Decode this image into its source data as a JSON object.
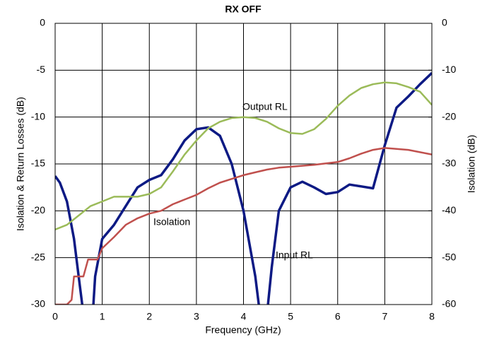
{
  "chart_data": {
    "type": "line",
    "title": "RX OFF",
    "xlabel": "Frequency (GHz)",
    "ylabel": "Isolation & Return Losses (dB)",
    "y2label": "Isolation (dB)",
    "xlim": [
      0,
      8
    ],
    "xticks": [
      0,
      1,
      2,
      3,
      4,
      5,
      6,
      7,
      8
    ],
    "ylim": [
      -30,
      0
    ],
    "yticks": [
      0,
      -5,
      -10,
      -15,
      -20,
      -25,
      -30
    ],
    "y2lim": [
      -60,
      0
    ],
    "y2ticks": [
      0,
      -10,
      -20,
      -30,
      -40,
      -50,
      -60
    ],
    "grid": true,
    "annotations": [
      "Output RL",
      "Isolation",
      "Input RL"
    ],
    "series": [
      {
        "name": "Input RL",
        "color": "#0d1a84",
        "x": [
          0,
          0.1,
          0.25,
          0.4,
          0.5,
          0.6,
          0.8,
          0.85,
          1.0,
          1.25,
          1.5,
          1.75,
          2.0,
          2.25,
          2.5,
          2.75,
          3.0,
          3.25,
          3.5,
          3.75,
          4.0,
          4.25,
          4.35,
          4.5,
          4.6,
          4.75,
          5.0,
          5.25,
          5.5,
          5.75,
          6.0,
          6.25,
          6.5,
          6.75,
          7.0,
          7.25,
          7.5,
          7.75,
          8.0
        ],
        "values": [
          -16.3,
          -17,
          -19,
          -23,
          -27,
          -31,
          -31,
          -27,
          -23,
          -21.5,
          -19.5,
          -17.5,
          -16.7,
          -16.2,
          -14.5,
          -12.5,
          -11.3,
          -11.1,
          -12,
          -15,
          -20,
          -27,
          -31,
          -31,
          -26,
          -20,
          -17.5,
          -16.9,
          -17.5,
          -18.2,
          -18,
          -17.2,
          -17.4,
          -17.6,
          -13,
          -9,
          -7.8,
          -6.5,
          -5.3
        ]
      },
      {
        "name": "Output RL",
        "color": "#9bbb59",
        "x": [
          0,
          0.25,
          0.5,
          0.75,
          1.0,
          1.25,
          1.5,
          1.75,
          2.0,
          2.25,
          2.5,
          2.75,
          3.0,
          3.25,
          3.5,
          3.75,
          4.0,
          4.25,
          4.5,
          4.75,
          5.0,
          5.25,
          5.5,
          5.75,
          6.0,
          6.25,
          6.5,
          6.75,
          7.0,
          7.25,
          7.5,
          7.75,
          8.0
        ],
        "values": [
          -22,
          -21.5,
          -20.5,
          -19.5,
          -19,
          -18.5,
          -18.5,
          -18.5,
          -18.2,
          -17.5,
          -15.8,
          -14,
          -12.5,
          -11.2,
          -10.5,
          -10.1,
          -10,
          -10.1,
          -10.5,
          -11.2,
          -11.7,
          -11.8,
          -11.3,
          -10.2,
          -8.8,
          -7.7,
          -6.9,
          -6.5,
          -6.3,
          -6.4,
          -6.8,
          -7.3,
          -8.7
        ]
      },
      {
        "name": "Isolation",
        "color": "#c0504d",
        "axis": "y2",
        "x": [
          0,
          0.25,
          0.35,
          0.4,
          0.6,
          0.7,
          0.9,
          1.0,
          1.25,
          1.5,
          1.75,
          2.0,
          2.25,
          2.5,
          2.75,
          3.0,
          3.25,
          3.5,
          3.75,
          4.0,
          4.25,
          4.5,
          4.75,
          5.0,
          5.5,
          6.0,
          6.25,
          6.5,
          6.75,
          7.0,
          7.5,
          8.0
        ],
        "values": [
          -60,
          -60,
          -59,
          -54,
          -54,
          -50.4,
          -50.4,
          -48,
          -45.6,
          -43,
          -41.6,
          -40.6,
          -40,
          -38.6,
          -37.6,
          -36.6,
          -35.2,
          -34,
          -33.2,
          -32.4,
          -31.8,
          -31.2,
          -30.8,
          -30.6,
          -30.2,
          -29.6,
          -28.8,
          -27.8,
          -27,
          -26.6,
          -27,
          -28
        ]
      }
    ]
  }
}
